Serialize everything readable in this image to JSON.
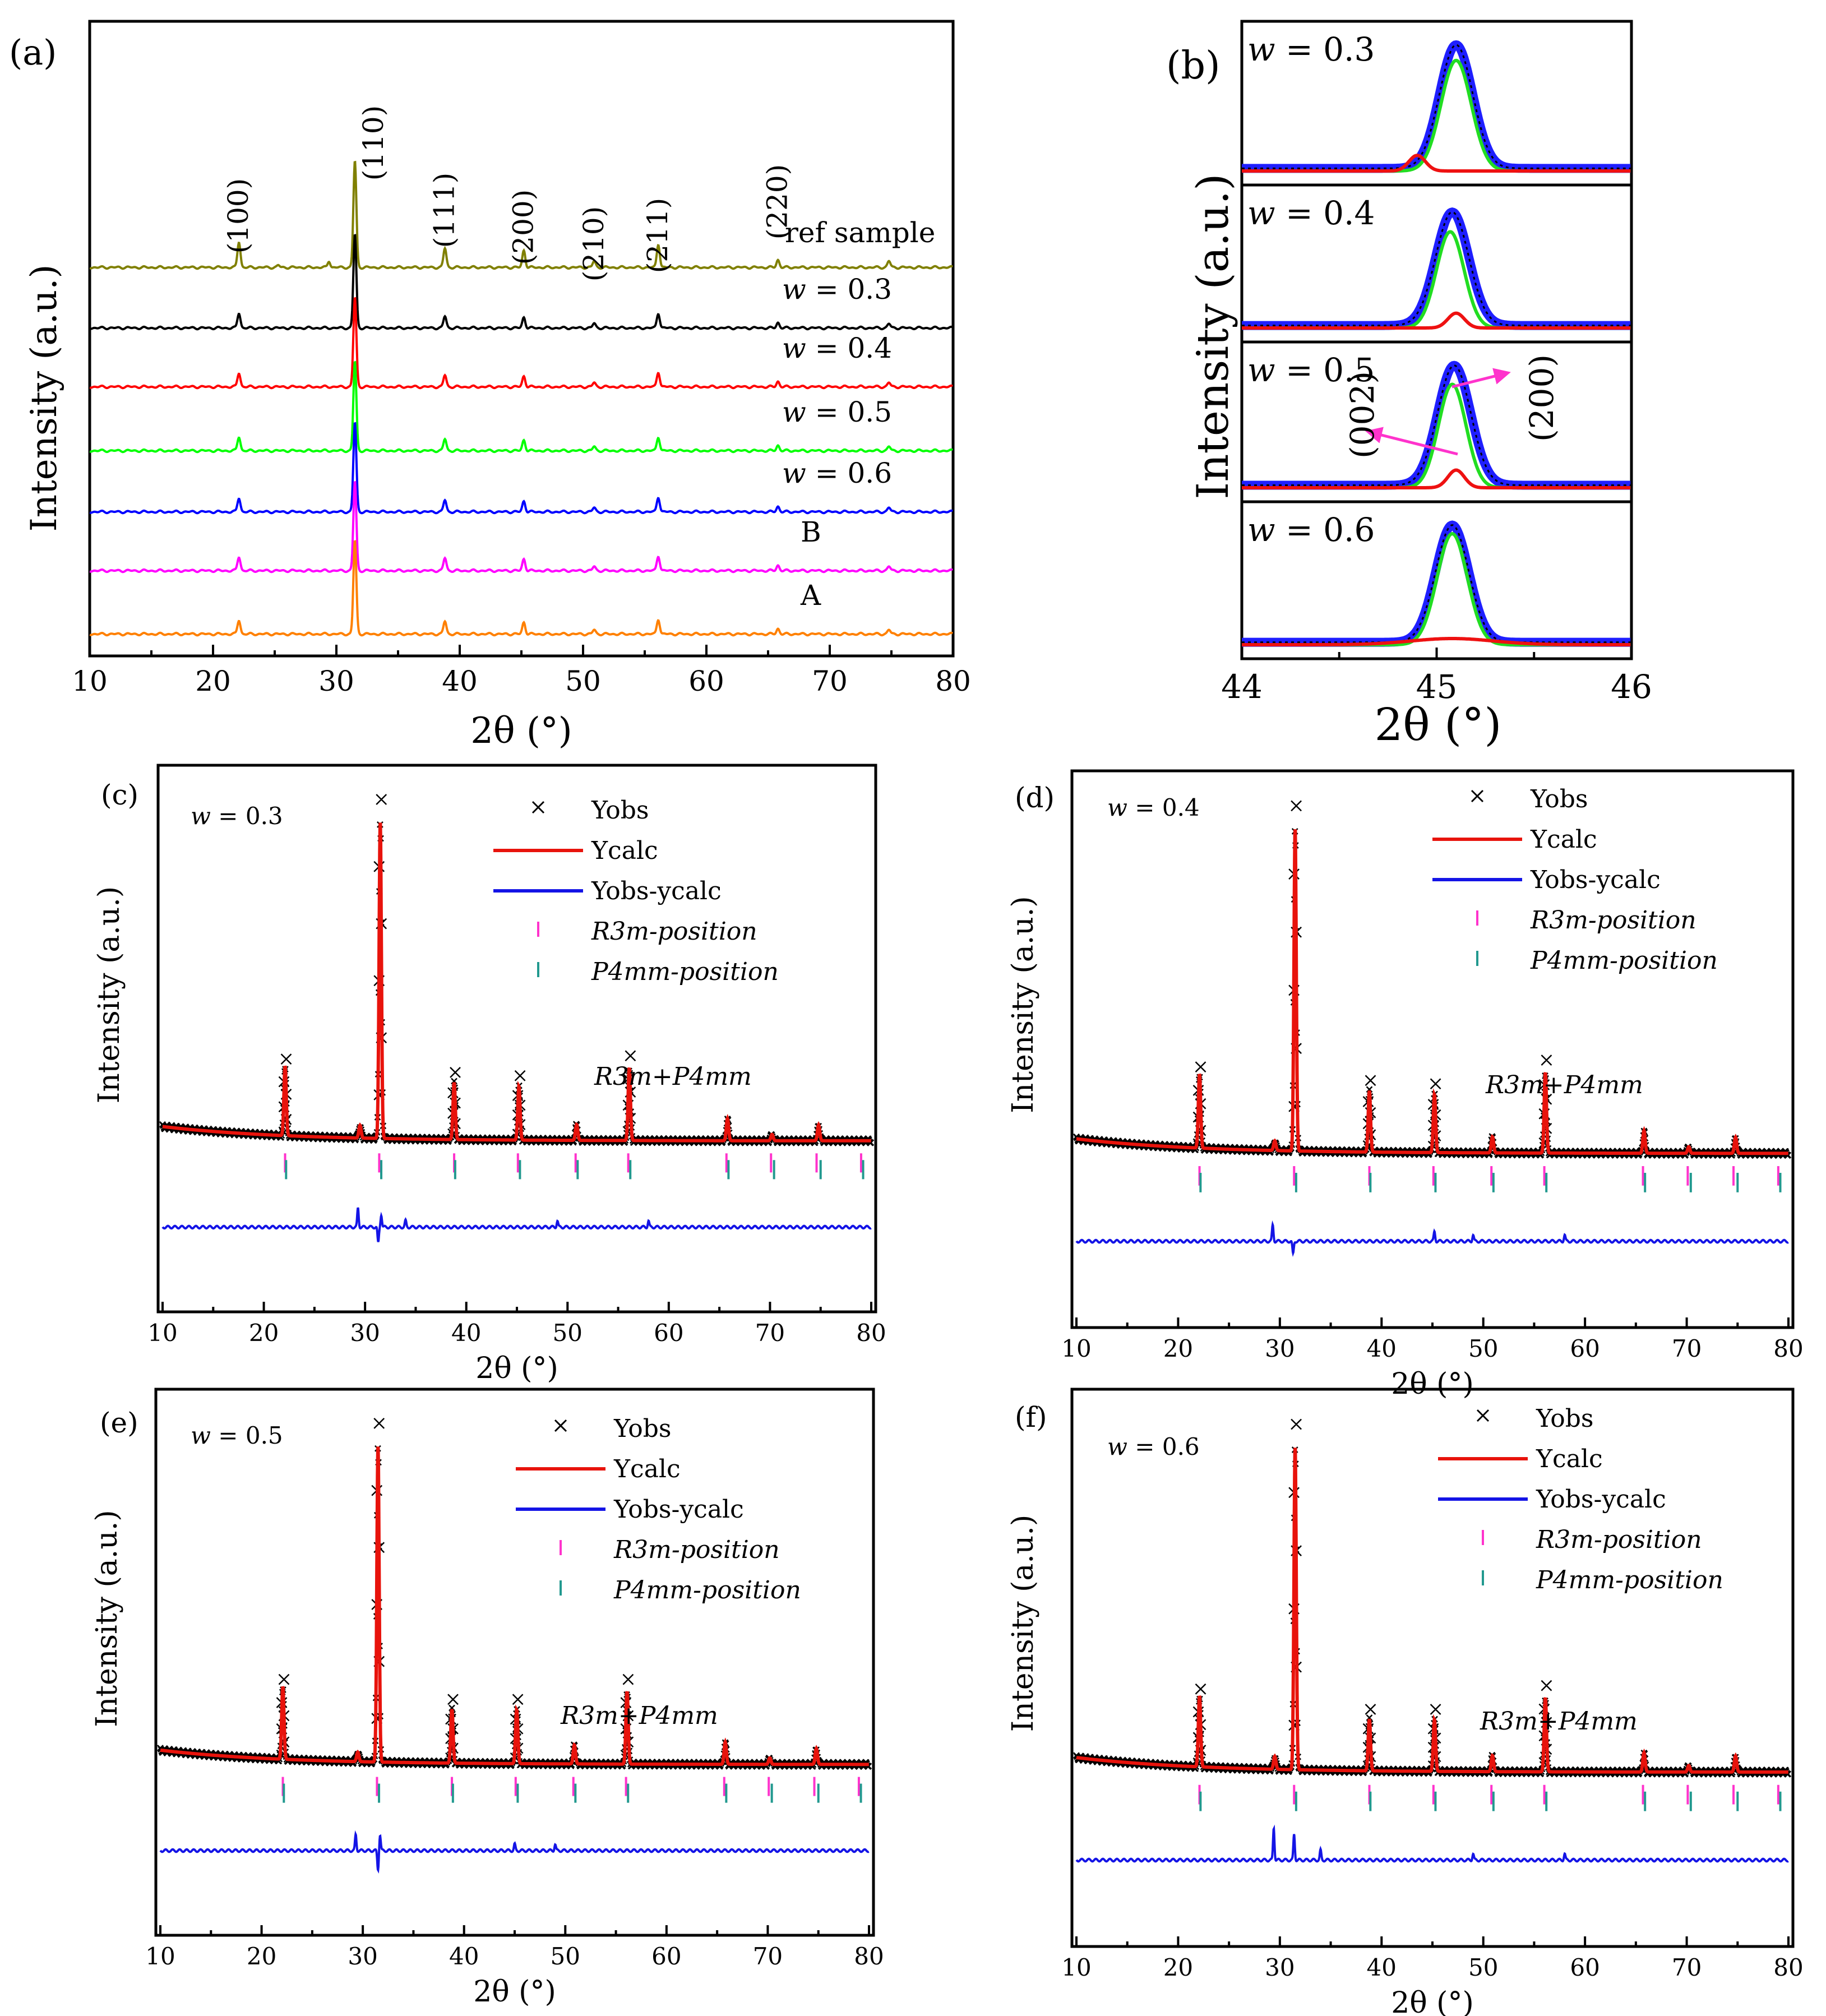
{
  "panel_labels": {
    "a": "(a)",
    "b": "(b)",
    "c": "(c)",
    "d": "(d)",
    "e": "(e)",
    "f": "(f)"
  },
  "axis_text": {
    "two_theta": "2θ (°)",
    "intensity": "Intensity (a.u.)",
    "w": "w",
    "eq": " = "
  },
  "colors": {
    "ref": "#808000",
    "w03": "#000000",
    "w04": "#ff0000",
    "w05": "#00ff00",
    "w06": "#0000ff",
    "B": "#ff00ff",
    "A": "#ff8000",
    "ycalc": "#e8130c",
    "diff": "#1414e6",
    "r3m": "#ff33cc",
    "p4mm": "#22998f",
    "fitGreen": "#22dd22",
    "fitRed": "#ee1111",
    "fitBlue": "#1f1fff",
    "arrow": "#ff33cc"
  },
  "chart_data": [
    {
      "id": "a",
      "type": "line",
      "title": "",
      "xlabel": "2θ (°)",
      "ylabel": "Intensity (a.u.)",
      "xlim": [
        10,
        80
      ],
      "xticks": [
        10,
        20,
        30,
        40,
        50,
        60,
        70,
        80
      ],
      "peaks": [
        22.1,
        31.5,
        38.8,
        45.2,
        50.9,
        56.1,
        65.8,
        74.8
      ],
      "reflections": [
        {
          "label": "(100)",
          "x": 22.1
        },
        {
          "label": "(110)",
          "x": 31.5
        },
        {
          "label": "(111)",
          "x": 38.8
        },
        {
          "label": "(200)",
          "x": 45.2
        },
        {
          "label": "(210)",
          "x": 50.9
        },
        {
          "label": "(211)",
          "x": 56.1
        },
        {
          "label": "(220)",
          "x": 65.8
        }
      ],
      "series": [
        {
          "name": "ref sample",
          "color_key": "ref",
          "heights": [
            1.2,
            5.0,
            0.9,
            0.8,
            0.3,
            1.1,
            0.35,
            0.3
          ],
          "extra": [
            [
              29.4,
              0.3
            ],
            [
              25.3,
              0.1
            ]
          ]
        },
        {
          "name": "w = 0.3",
          "w_value": "0.3",
          "color_key": "w03",
          "heights": [
            0.7,
            4.4,
            0.55,
            0.5,
            0.22,
            0.7,
            0.25,
            0.2
          ],
          "extra": []
        },
        {
          "name": "w = 0.4",
          "w_value": "0.4",
          "color_key": "w04",
          "heights": [
            0.65,
            4.2,
            0.55,
            0.5,
            0.2,
            0.7,
            0.25,
            0.2
          ],
          "extra": []
        },
        {
          "name": "w = 0.5",
          "w_value": "0.5",
          "color_key": "w05",
          "heights": [
            0.65,
            4.2,
            0.55,
            0.5,
            0.2,
            0.65,
            0.25,
            0.2
          ],
          "extra": []
        },
        {
          "name": "w = 0.6",
          "w_value": "0.6",
          "color_key": "w06",
          "heights": [
            0.65,
            4.2,
            0.55,
            0.5,
            0.2,
            0.7,
            0.25,
            0.2
          ],
          "extra": []
        },
        {
          "name": "B",
          "color_key": "B",
          "heights": [
            0.65,
            4.2,
            0.6,
            0.55,
            0.2,
            0.7,
            0.25,
            0.2
          ],
          "extra": []
        },
        {
          "name": "A",
          "color_key": "A",
          "heights": [
            0.65,
            4.4,
            0.6,
            0.55,
            0.2,
            0.7,
            0.25,
            0.2
          ],
          "extra": []
        }
      ]
    },
    {
      "id": "b",
      "type": "line",
      "xlabel": "2θ ( ° )",
      "ylabel": "Intensity (a.u.)",
      "xlim": [
        44,
        46
      ],
      "xticks": [
        44,
        45,
        46
      ],
      "subpanels": [
        {
          "w_value": "0.3",
          "total": {
            "center": 45.1,
            "height": 0.95,
            "width": 0.12
          },
          "p200": {
            "center": 45.1,
            "height": 0.85,
            "width": 0.11
          },
          "p002": {
            "center": 44.9,
            "height": 0.12,
            "width": 0.06
          }
        },
        {
          "w_value": "0.4",
          "total": {
            "center": 45.08,
            "height": 0.92,
            "width": 0.12
          },
          "p200": {
            "center": 45.07,
            "height": 0.78,
            "width": 0.1
          },
          "p002": {
            "center": 45.1,
            "height": 0.12,
            "width": 0.06
          }
        },
        {
          "w_value": "0.5",
          "total": {
            "center": 45.09,
            "height": 0.95,
            "width": 0.12
          },
          "p200": {
            "center": 45.08,
            "height": 0.82,
            "width": 0.1
          },
          "p002": {
            "center": 45.1,
            "height": 0.14,
            "width": 0.06
          }
        },
        {
          "w_value": "0.6",
          "total": {
            "center": 45.08,
            "height": 0.95,
            "width": 0.12
          },
          "p200": {
            "center": 45.08,
            "height": 0.9,
            "width": 0.11
          },
          "p002": {
            "center": 45.08,
            "height": 0.05,
            "width": 0.3
          }
        }
      ],
      "annotations": {
        "p002": "(002)",
        "p200": "(200)"
      }
    },
    {
      "id": "c",
      "type": "scatter",
      "w_value": "0.3",
      "xlabel": "2θ (°)",
      "ylabel": "Intensity (a.u.)",
      "xlim": [
        10,
        80
      ],
      "xticks": [
        10,
        20,
        30,
        40,
        50,
        60,
        70,
        80
      ],
      "peak_x": [
        22.1,
        29.5,
        31.5,
        38.8,
        45.2,
        50.9,
        56.1,
        65.8,
        70.2,
        74.8
      ],
      "peak_h": [
        0.22,
        0.04,
        1.0,
        0.18,
        0.17,
        0.05,
        0.23,
        0.07,
        0.02,
        0.05
      ],
      "diff_peaks": [
        [
          29.3,
          0.06
        ],
        [
          31.3,
          -0.05
        ],
        [
          31.6,
          0.04
        ],
        [
          34.0,
          0.02
        ],
        [
          49.0,
          0.02
        ],
        [
          58.0,
          0.02
        ]
      ],
      "r3m_positions": [
        22.1,
        31.4,
        38.8,
        45.1,
        50.8,
        56.0,
        65.7,
        70.1,
        74.6,
        79.0
      ],
      "p4mm_positions": [
        22.2,
        31.6,
        38.9,
        45.3,
        51.0,
        56.2,
        65.9,
        70.4,
        75.0,
        79.2
      ],
      "phase_label": "R3m+P4mm",
      "legend": [
        "Yobs",
        "Ycalc",
        "Yobs-ycalc",
        "R3m-position",
        "P4mm-position"
      ]
    },
    {
      "id": "d",
      "type": "scatter",
      "w_value": "0.4",
      "xlabel": "2θ (°)",
      "ylabel": "Intensity (a.u.)",
      "xlim": [
        10,
        80
      ],
      "xticks": [
        10,
        20,
        30,
        40,
        50,
        60,
        70,
        80
      ],
      "peak_x": [
        22.1,
        29.5,
        31.5,
        38.8,
        45.2,
        50.9,
        56.1,
        65.8,
        70.2,
        74.8
      ],
      "peak_h": [
        0.23,
        0.03,
        1.0,
        0.19,
        0.18,
        0.05,
        0.25,
        0.07,
        0.02,
        0.05
      ],
      "diff_peaks": [
        [
          29.3,
          0.05
        ],
        [
          31.3,
          -0.04
        ],
        [
          45.2,
          0.03
        ],
        [
          49.0,
          0.02
        ],
        [
          58.0,
          0.02
        ]
      ],
      "r3m_positions": [
        22.1,
        31.4,
        38.8,
        45.1,
        50.8,
        56.0,
        65.7,
        70.1,
        74.6,
        79.0
      ],
      "p4mm_positions": [
        22.2,
        31.6,
        38.9,
        45.3,
        51.0,
        56.2,
        65.9,
        70.4,
        75.0,
        79.2
      ],
      "phase_label": "R3m+P4mm",
      "legend": [
        "Yobs",
        "Ycalc",
        "Yobs-ycalc",
        "R3m-position",
        "P4mm-position"
      ]
    },
    {
      "id": "e",
      "type": "scatter",
      "w_value": "0.5",
      "xlabel": "2θ (°)",
      "ylabel": "Intensity (a.u.)",
      "xlim": [
        10,
        80
      ],
      "xticks": [
        10,
        20,
        30,
        40,
        50,
        60,
        70,
        80
      ],
      "peak_x": [
        22.1,
        29.5,
        31.5,
        38.8,
        45.2,
        50.9,
        56.1,
        65.8,
        70.2,
        74.8
      ],
      "peak_h": [
        0.23,
        0.03,
        1.0,
        0.17,
        0.17,
        0.06,
        0.23,
        0.07,
        0.02,
        0.05
      ],
      "diff_peaks": [
        [
          29.3,
          0.05
        ],
        [
          31.5,
          -0.06
        ],
        [
          31.7,
          0.05
        ],
        [
          45.0,
          0.02
        ],
        [
          49.0,
          0.02
        ]
      ],
      "r3m_positions": [
        22.1,
        31.4,
        38.8,
        45.1,
        50.8,
        56.0,
        65.7,
        70.1,
        74.6,
        79.0
      ],
      "p4mm_positions": [
        22.2,
        31.6,
        38.9,
        45.3,
        51.0,
        56.2,
        65.9,
        70.4,
        75.0,
        79.2
      ],
      "phase_label": "R3m+P4mm",
      "legend": [
        "Yobs",
        "Ycalc",
        "Yobs-ycalc",
        "R3m-position",
        "P4mm-position"
      ]
    },
    {
      "id": "f",
      "type": "scatter",
      "w_value": "0.6",
      "xlabel": "2θ (°)",
      "ylabel": "Intensity (a.u.)",
      "xlim": [
        10,
        80
      ],
      "xticks": [
        10,
        20,
        30,
        40,
        50,
        60,
        70,
        80
      ],
      "peak_x": [
        22.1,
        29.5,
        31.5,
        38.8,
        45.2,
        50.9,
        56.1,
        65.8,
        70.2,
        74.8
      ],
      "peak_h": [
        0.22,
        0.04,
        1.0,
        0.16,
        0.16,
        0.05,
        0.23,
        0.06,
        0.02,
        0.05
      ],
      "diff_peaks": [
        [
          29.4,
          0.1
        ],
        [
          31.4,
          0.08
        ],
        [
          34.0,
          0.03
        ],
        [
          49.0,
          0.02
        ],
        [
          58.0,
          0.02
        ]
      ],
      "r3m_positions": [
        22.1,
        31.4,
        38.8,
        45.1,
        50.8,
        56.0,
        65.7,
        70.1,
        74.6,
        79.0
      ],
      "p4mm_positions": [
        22.2,
        31.6,
        38.9,
        45.3,
        51.0,
        56.2,
        65.9,
        70.4,
        75.0,
        79.2
      ],
      "phase_label": "R3m+P4mm",
      "legend": [
        "Yobs",
        "Ycalc",
        "Yobs-ycalc",
        "R3m-position",
        "P4mm-position"
      ]
    }
  ]
}
